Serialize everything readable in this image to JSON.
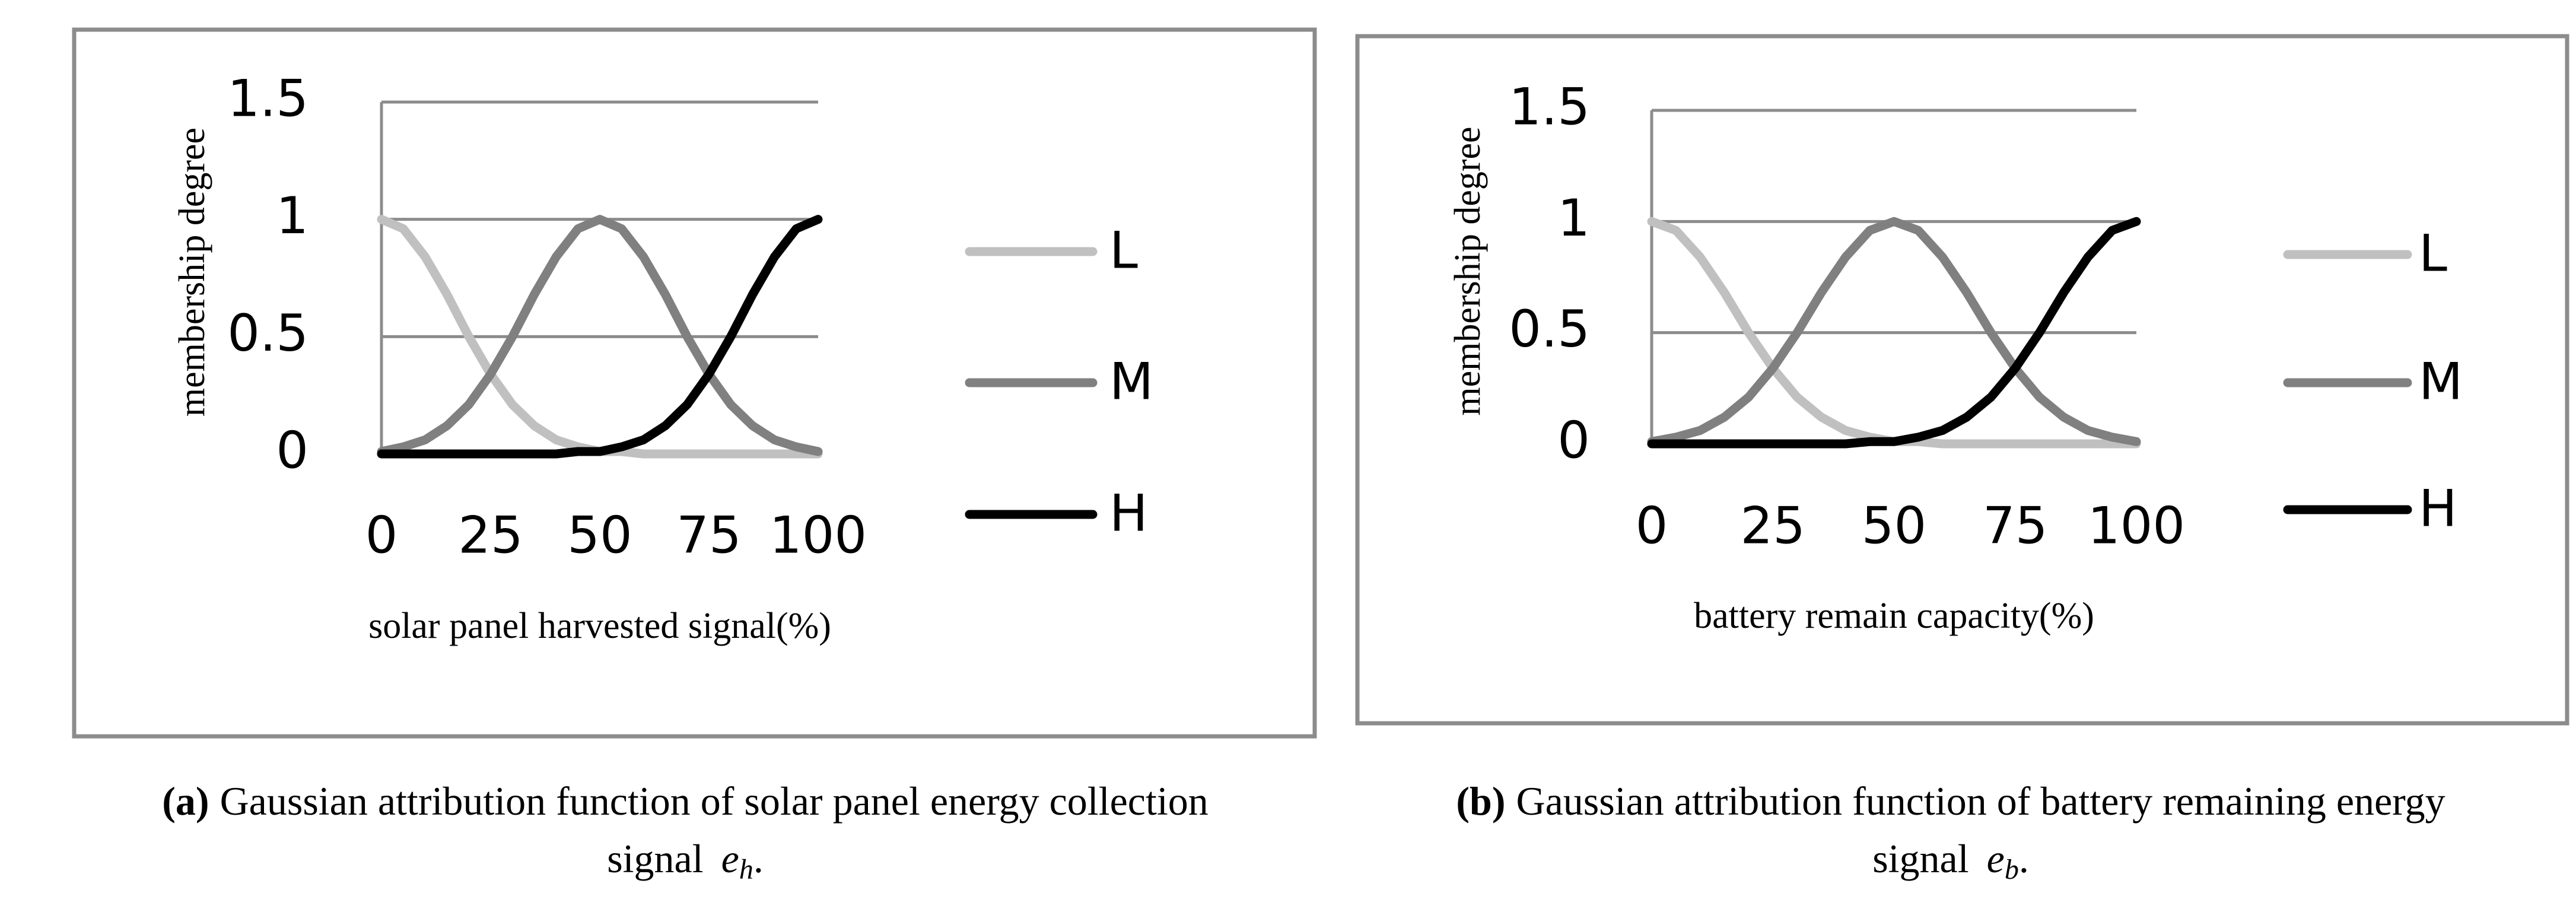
{
  "chart_data": [
    {
      "type": "line",
      "x_label": "solar panel harvested signal(%)",
      "y_label": "membership degree",
      "x": [
        0,
        5,
        10,
        15,
        20,
        25,
        30,
        35,
        40,
        45,
        50,
        55,
        60,
        65,
        70,
        75,
        80,
        85,
        90,
        95,
        100
      ],
      "xlim": [
        0,
        100
      ],
      "xticks": [
        0,
        25,
        50,
        75,
        100
      ],
      "ylim": [
        0,
        1.5
      ],
      "yticks": [
        0,
        0.5,
        1,
        1.5
      ],
      "grid": true,
      "series": [
        {
          "name": "L",
          "color": "#c0c0c0",
          "values": [
            1,
            0.96,
            0.84,
            0.68,
            0.5,
            0.34,
            0.21,
            0.12,
            0.06,
            0.03,
            0.01,
            0.01,
            0,
            0,
            0,
            0,
            0,
            0,
            0,
            0,
            0
          ]
        },
        {
          "name": "M",
          "color": "#808080",
          "values": [
            0.01,
            0.03,
            0.06,
            0.12,
            0.21,
            0.34,
            0.5,
            0.68,
            0.84,
            0.96,
            1,
            0.96,
            0.84,
            0.68,
            0.5,
            0.34,
            0.21,
            0.12,
            0.06,
            0.03,
            0.01
          ]
        },
        {
          "name": "H",
          "color": "#000000",
          "values": [
            0,
            0,
            0,
            0,
            0,
            0,
            0,
            0,
            0,
            0.01,
            0.01,
            0.03,
            0.06,
            0.12,
            0.21,
            0.34,
            0.5,
            0.68,
            0.84,
            0.96,
            1
          ]
        }
      ],
      "caption": {
        "label": "(a)",
        "lines": [
          "Gaussian attribution function of solar panel energy collection",
          "signal"
        ],
        "symbol": "e",
        "subscript": "h",
        "end": "."
      }
    },
    {
      "type": "line",
      "x_label": "battery remain capacity(%)",
      "y_label": "membership degree",
      "x": [
        0,
        5,
        10,
        15,
        20,
        25,
        30,
        35,
        40,
        45,
        50,
        55,
        60,
        65,
        70,
        75,
        80,
        85,
        90,
        95,
        100
      ],
      "xlim": [
        0,
        100
      ],
      "xticks": [
        0,
        25,
        50,
        75,
        100
      ],
      "ylim": [
        0,
        1.5
      ],
      "yticks": [
        0,
        0.5,
        1,
        1.5
      ],
      "grid": true,
      "series": [
        {
          "name": "L",
          "color": "#c0c0c0",
          "values": [
            1,
            0.96,
            0.84,
            0.68,
            0.5,
            0.34,
            0.21,
            0.12,
            0.06,
            0.03,
            0.01,
            0.01,
            0,
            0,
            0,
            0,
            0,
            0,
            0,
            0,
            0
          ]
        },
        {
          "name": "M",
          "color": "#808080",
          "values": [
            0.01,
            0.03,
            0.06,
            0.12,
            0.21,
            0.34,
            0.5,
            0.68,
            0.84,
            0.96,
            1,
            0.96,
            0.84,
            0.68,
            0.5,
            0.34,
            0.21,
            0.12,
            0.06,
            0.03,
            0.01
          ]
        },
        {
          "name": "H",
          "color": "#000000",
          "values": [
            0,
            0,
            0,
            0,
            0,
            0,
            0,
            0,
            0,
            0.01,
            0.01,
            0.03,
            0.06,
            0.12,
            0.21,
            0.34,
            0.5,
            0.68,
            0.84,
            0.96,
            1
          ]
        }
      ],
      "caption": {
        "label": "(b)",
        "lines": [
          "Gaussian attribution function of battery remaining energy",
          "signal"
        ],
        "symbol": "e",
        "subscript": "b",
        "end": "."
      }
    }
  ]
}
